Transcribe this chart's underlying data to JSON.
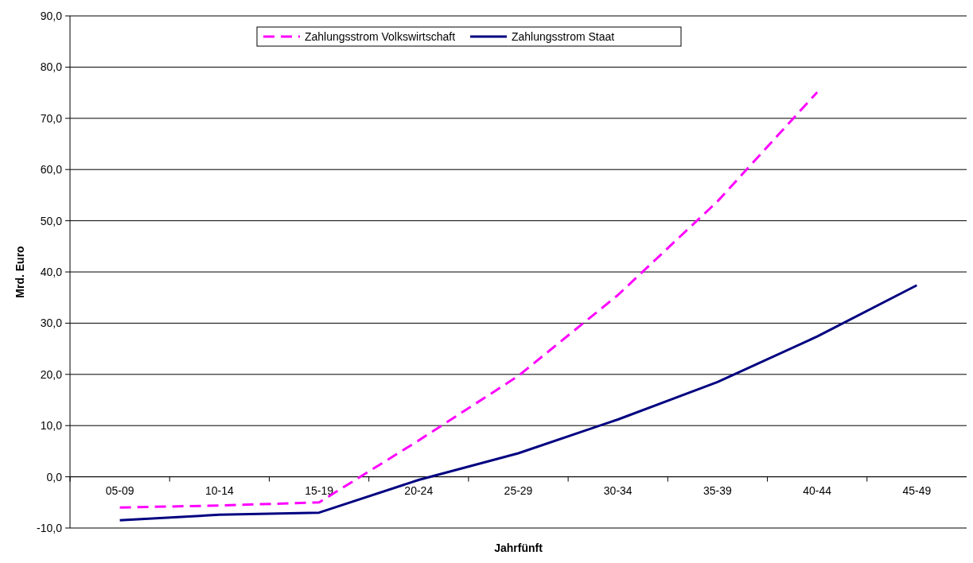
{
  "chart_data": {
    "type": "line",
    "xlabel": "Jahrfünft",
    "ylabel": "Mrd. Euro",
    "categories": [
      "05-09",
      "10-14",
      "15-19",
      "20-24",
      "25-29",
      "30-34",
      "35-39",
      "40-44",
      "45-49"
    ],
    "series": [
      {
        "name": "Zahlungsstrom Volkswirtschaft",
        "color": "#ff00ff",
        "line_style": "dashed",
        "values": [
          -6.0,
          -5.6,
          -5.0,
          7.1,
          19.7,
          35.5,
          53.8,
          75.1,
          null
        ]
      },
      {
        "name": "Zahlungsstrom Staat",
        "color": "#000080",
        "line_style": "solid",
        "values": [
          -8.5,
          -7.4,
          -7.0,
          -0.6,
          4.6,
          11.2,
          18.5,
          27.4,
          37.4
        ]
      }
    ],
    "ylim": [
      -10,
      90
    ],
    "yticks": [
      {
        "value": -10,
        "label": "-10,0"
      },
      {
        "value": 0,
        "label": "0,0"
      },
      {
        "value": 10,
        "label": "10,0"
      },
      {
        "value": 20,
        "label": "20,0"
      },
      {
        "value": 30,
        "label": "30,0"
      },
      {
        "value": 40,
        "label": "40,0"
      },
      {
        "value": 50,
        "label": "50,0"
      },
      {
        "value": 60,
        "label": "60,0"
      },
      {
        "value": 70,
        "label": "70,0"
      },
      {
        "value": 80,
        "label": "80,0"
      },
      {
        "value": 90,
        "label": "90,0"
      }
    ],
    "grid": "y",
    "legend": "top",
    "marker": "none"
  }
}
